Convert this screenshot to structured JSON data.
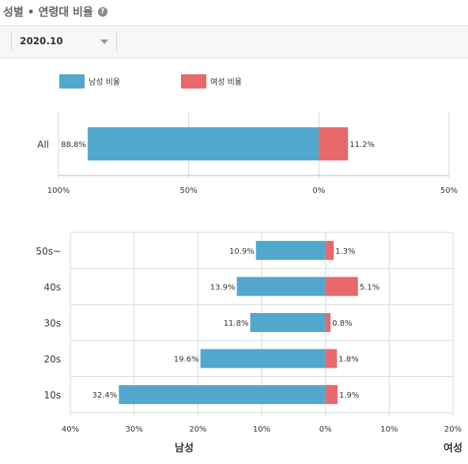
{
  "header": {
    "title": "성별 • 연령대 비율",
    "help_icon": "question-circle-icon"
  },
  "filter": {
    "selected": "2020.10",
    "caret_icon": "caret-down-icon"
  },
  "legend": [
    {
      "label": "남성 비율",
      "color": "#52a8cc"
    },
    {
      "label": "여성 비율",
      "color": "#e8696b"
    }
  ],
  "gender_labels": {
    "male": "남성",
    "female": "여성"
  },
  "chart_data": [
    {
      "type": "bar",
      "orientation": "horizontal-diverging",
      "categories": [
        "All"
      ],
      "series": [
        {
          "name": "남성 비율",
          "values": [
            88.8
          ],
          "labels": [
            "88.8%"
          ],
          "color": "#52a8cc"
        },
        {
          "name": "여성 비율",
          "values": [
            11.2
          ],
          "labels": [
            "11.2%"
          ],
          "color": "#e8696b"
        }
      ],
      "xlim": [
        -100,
        50
      ],
      "tick_values": [
        -100,
        -50,
        0,
        50
      ],
      "tick_labels": [
        "100%",
        "50%",
        "0%",
        "50%"
      ],
      "grid": true
    },
    {
      "type": "bar",
      "orientation": "horizontal-diverging",
      "categories": [
        "50s~",
        "40s",
        "30s",
        "20s",
        "10s"
      ],
      "series": [
        {
          "name": "남성 비율",
          "values": [
            10.9,
            13.9,
            11.8,
            19.6,
            32.4
          ],
          "labels": [
            "10.9%",
            "13.9%",
            "11.8%",
            "19.6%",
            "32.4%"
          ],
          "color": "#52a8cc"
        },
        {
          "name": "여성 비율",
          "values": [
            1.3,
            5.1,
            0.8,
            1.8,
            1.9
          ],
          "labels": [
            "1.3%",
            "5.1%",
            "0.8%",
            "1.8%",
            "1.9%"
          ],
          "color": "#e8696b"
        }
      ],
      "xlim": [
        -40,
        20
      ],
      "tick_values": [
        -40,
        -30,
        -20,
        -10,
        0,
        10,
        20
      ],
      "tick_labels": [
        "40%",
        "30%",
        "20%",
        "10%",
        "0%",
        "10%",
        "20%"
      ],
      "grid": true
    }
  ]
}
